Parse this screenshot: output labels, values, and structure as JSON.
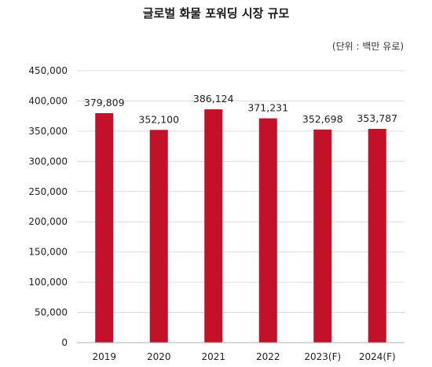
{
  "title": "글로벌 화물 포워딩 시장 규모",
  "unit_note": "(단위 : 백만 유로)",
  "colors": {
    "bar": "#c4112a"
  },
  "chart_data": {
    "type": "bar",
    "title": "글로벌 화물 포워딩 시장 규모",
    "categories": [
      "2019",
      "2020",
      "2021",
      "2022",
      "2023(F)",
      "2024(F)"
    ],
    "values": [
      379809,
      352100,
      386124,
      371231,
      352698,
      353787
    ],
    "value_labels": [
      "379,809",
      "352,100",
      "386,124",
      "371,231",
      "352,698",
      "353,787"
    ],
    "yticks": [
      0,
      50000,
      100000,
      150000,
      200000,
      250000,
      300000,
      350000,
      400000,
      450000
    ],
    "ytick_labels": [
      "0",
      "50,000",
      "100,000",
      "150,000",
      "200,000",
      "250,000",
      "300,000",
      "350,000",
      "400,000",
      "450,000"
    ],
    "ylim": [
      0,
      450000
    ],
    "grid": true,
    "xlabel": "",
    "ylabel": ""
  }
}
